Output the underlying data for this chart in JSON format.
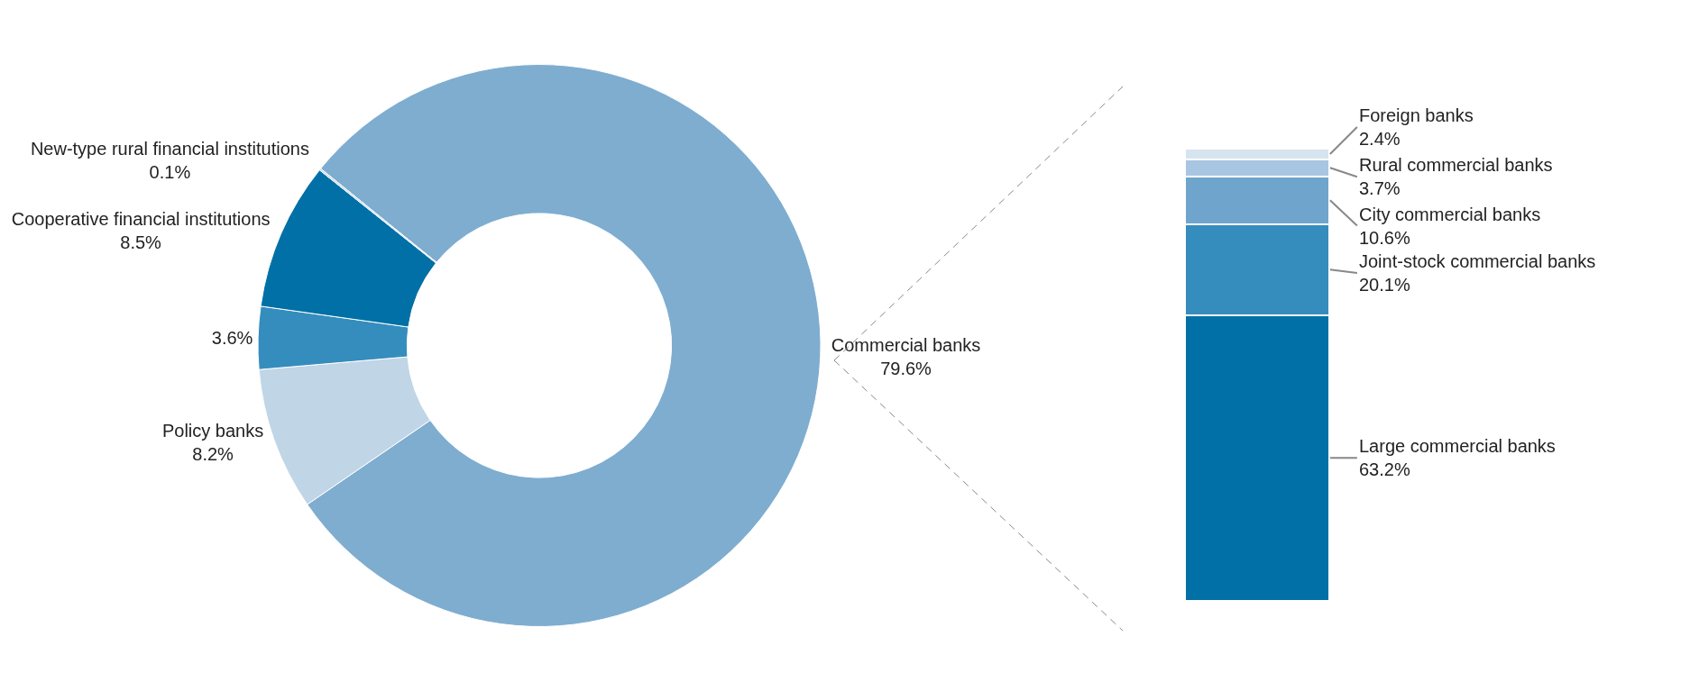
{
  "chart_data": [
    {
      "type": "donut",
      "categories": [
        "Commercial banks",
        "Policy banks",
        null,
        "Cooperative financial institutions",
        "New-type rural financial institutions"
      ],
      "values": [
        79.6,
        8.2,
        3.6,
        8.5,
        0.1
      ],
      "value_labels": [
        "79.6%",
        "8.2%",
        "3.6%",
        "8.5%",
        "0.1%"
      ],
      "colors": [
        "#7eadd0",
        "#c0d5e6",
        "#358dbd",
        "#0070a6",
        "#c0d5e6"
      ],
      "legend": false
    },
    {
      "type": "bar",
      "stacked": true,
      "categories": [
        null
      ],
      "legend": false,
      "series": [
        {
          "name": "Large commercial banks",
          "color": "#0070a6",
          "values": [
            63.2
          ],
          "value_labels": [
            "63.2%"
          ]
        },
        {
          "name": "Joint-stock commercial banks",
          "color": "#358dbd",
          "values": [
            20.1
          ],
          "value_labels": [
            "20.1%"
          ]
        },
        {
          "name": "City commercial banks",
          "color": "#6fa5cc",
          "values": [
            10.6
          ],
          "value_labels": [
            "10.6%"
          ]
        },
        {
          "name": "Rural commercial banks",
          "color": "#a8c6e2",
          "values": [
            3.7
          ],
          "value_labels": [
            "3.7%"
          ]
        },
        {
          "name": "Foreign banks",
          "color": "#d6e4f0",
          "values": [
            2.4
          ],
          "value_labels": [
            "2.4%"
          ]
        }
      ]
    }
  ]
}
